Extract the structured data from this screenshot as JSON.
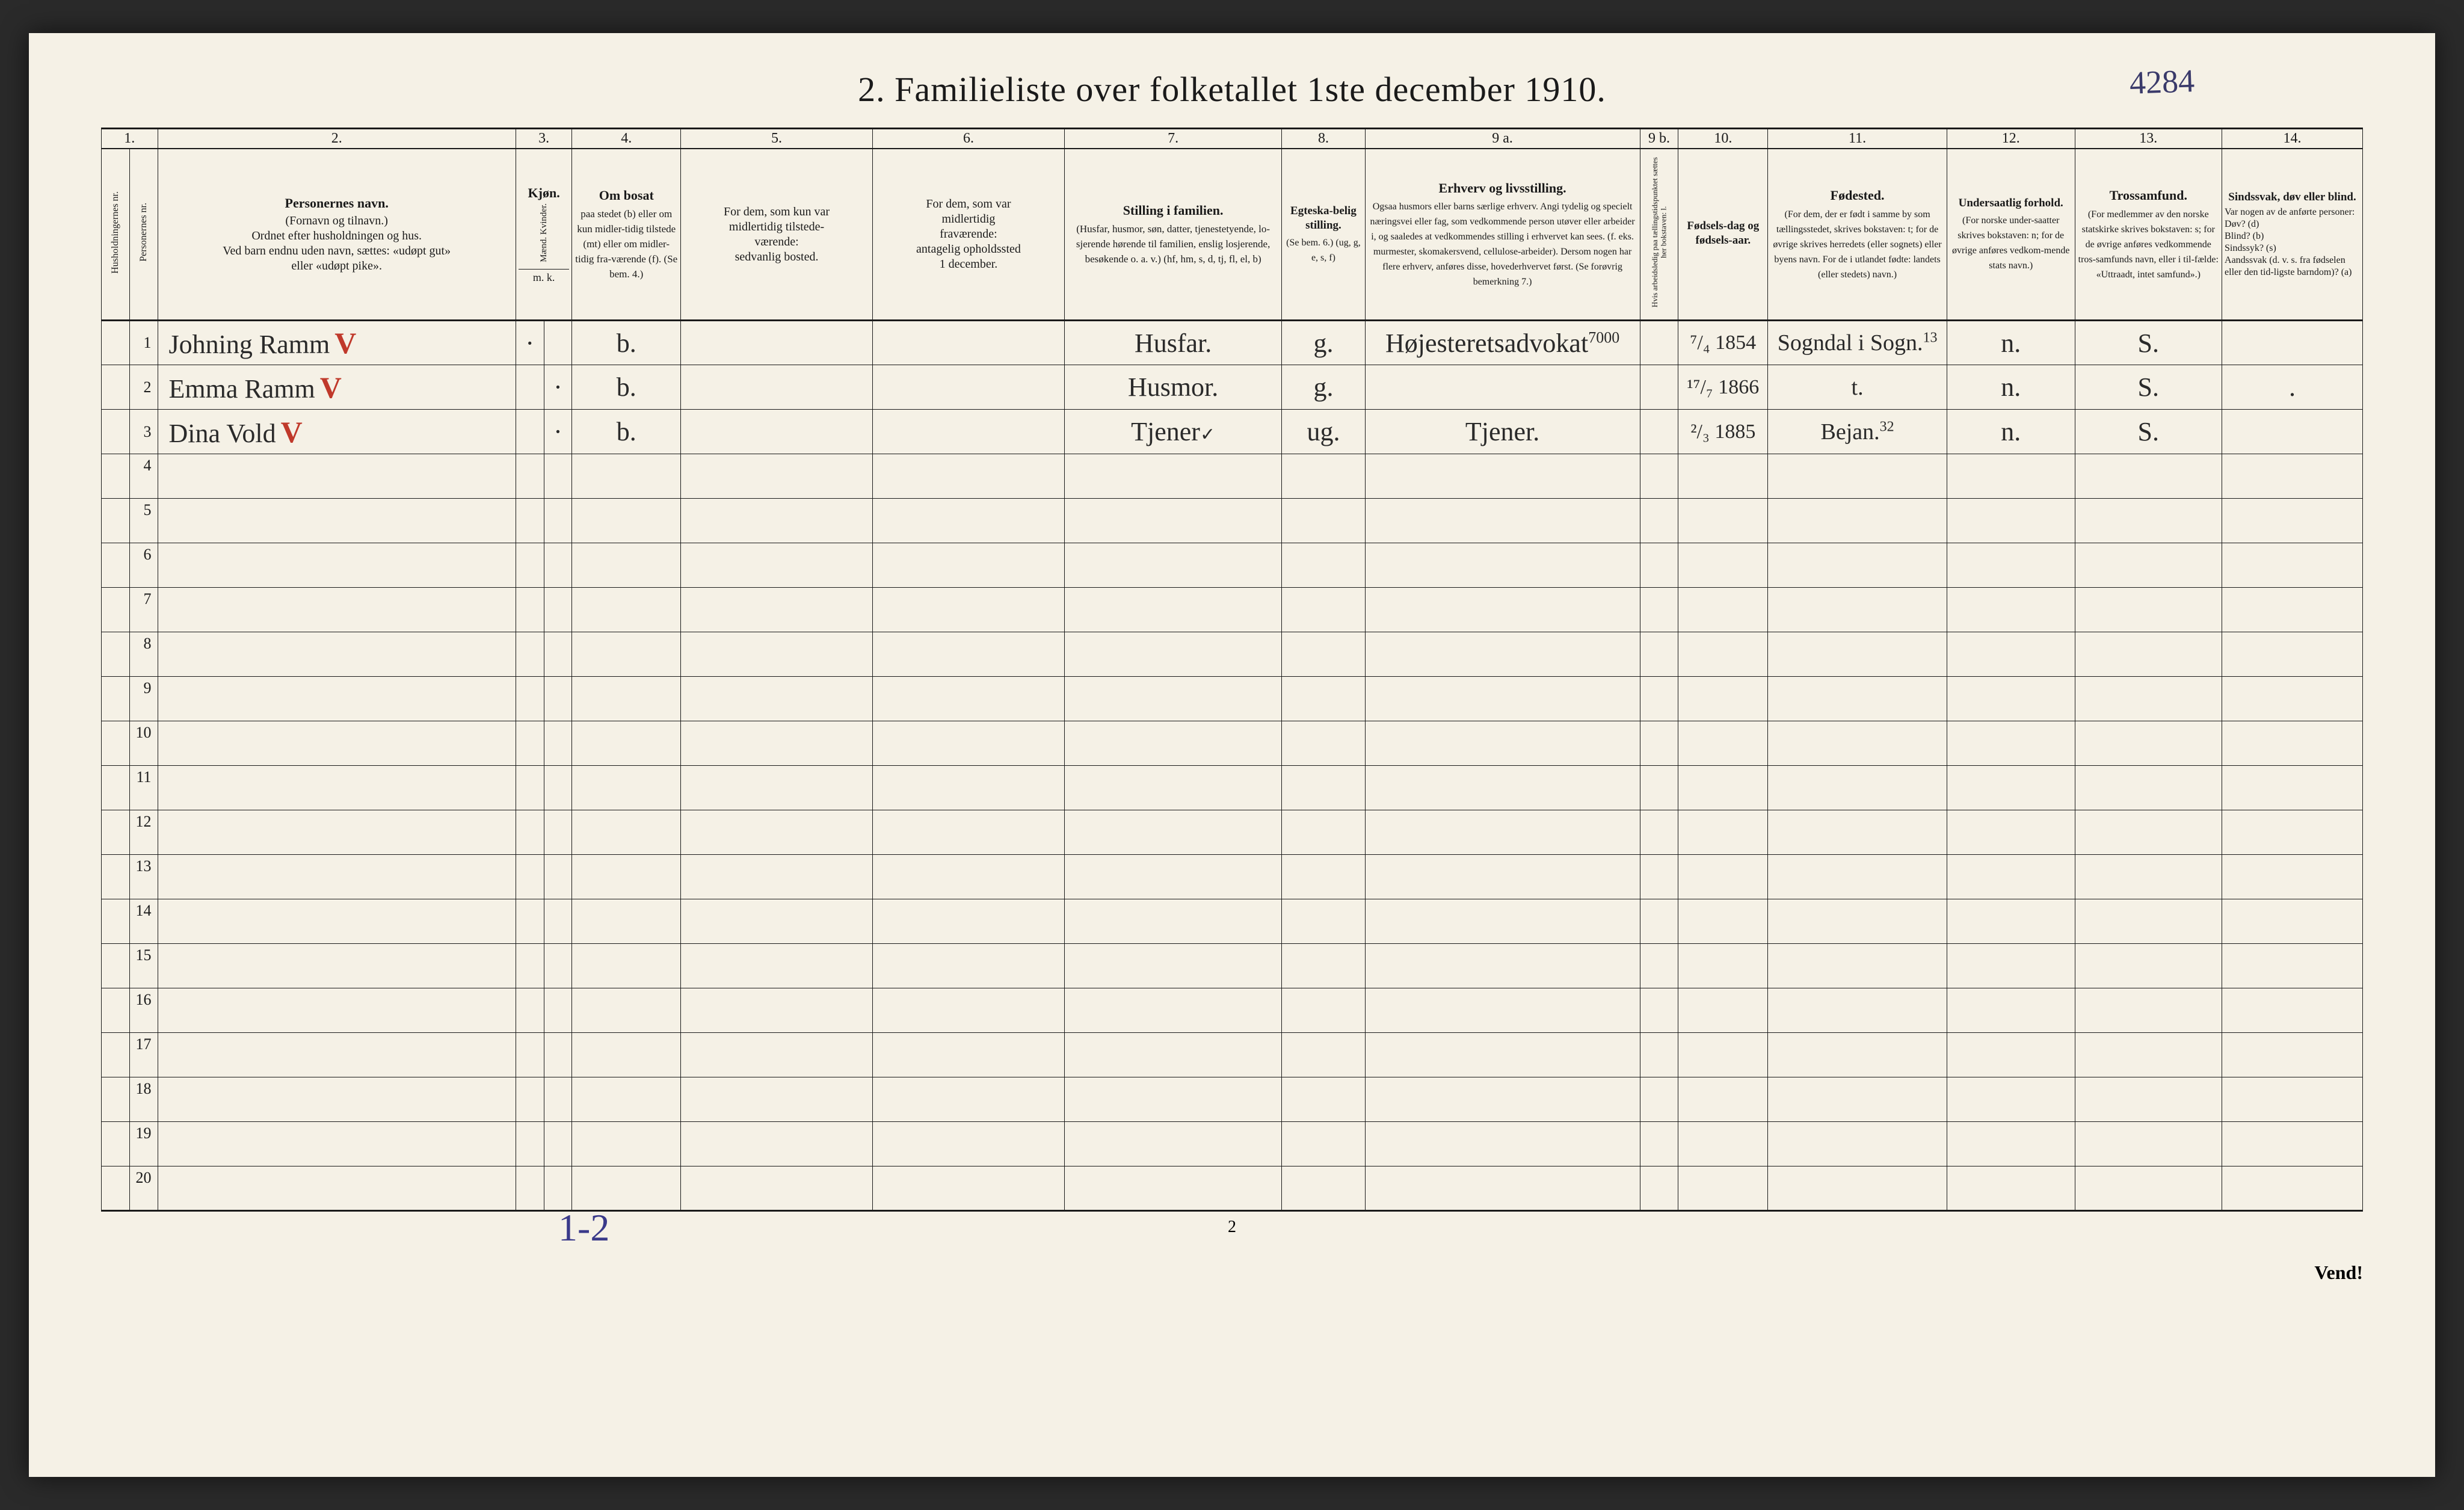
{
  "page": {
    "title": "2.  Familieliste over folketallet 1ste december 1910.",
    "top_note": "4284",
    "page_number": "2",
    "bottom_note": "1-2",
    "vend": "Vend!",
    "background_color": "#f5f1e6",
    "border_color": "#1a1a1a",
    "handwriting_color": "#2a2a2a",
    "blue_ink": "#3a3a8a",
    "red_ink": "#c0392b"
  },
  "col_numbers": [
    "1.",
    "2.",
    "3.",
    "4.",
    "5.",
    "6.",
    "7.",
    "8.",
    "9 a.",
    "9 b.",
    "10.",
    "11.",
    "12.",
    "13.",
    "14."
  ],
  "headers": {
    "c1a": "Husholdningernes nr.",
    "c1b": "Personernes nr.",
    "c2_strong": "Personernes navn.",
    "c2_rest": "(Fornavn og tilnavn.)\nOrdnet efter husholdningen og hus.\nVed barn endnu uden navn, sættes: «udøpt gut»\neller «udøpt pike».",
    "c3_strong": "Kjøn.",
    "c3_sub": "Mænd.  Kvinder.",
    "c3_mk": "m.  k.",
    "c4_strong": "Om bosat",
    "c4_rest": "paa stedet (b) eller om kun midler-tidig tilstede (mt) eller om midler-tidig fra-værende (f). (Se bem. 4.)",
    "c5": "For dem, som kun var\nmidlertidig tilstede-\nværende:\nsedvanlig bosted.",
    "c6": "For dem, som var\nmidlertidig\nfraværende:\nantagelig opholdssted\n1 december.",
    "c7_strong": "Stilling i familien.",
    "c7_rest": "(Husfar, husmor, søn, datter, tjenestetyende, lo-sjerende hørende til familien, enslig losjerende, besøkende o. a. v.)\n(hf, hm, s, d, tj, fl, el, b)",
    "c8_strong": "Egteska-belig stilling.",
    "c8_rest": "(Se bem. 6.)\n(ug, g, e, s, f)",
    "c9a_strong": "Erhverv og livsstilling.",
    "c9a_rest": "Ogsaa husmors eller barns særlige erhverv. Angi tydelig og specielt næringsvei eller fag, som vedkommende person utøver eller arbeider i, og saaledes at vedkommendes stilling i erhvervet kan sees. (f. eks. murmester, skomakersvend, cellulose-arbeider). Dersom nogen har flere erhverv, anføres disse, hovederhvervet først.\n(Se forøvrig bemerkning 7.)",
    "c9b": "Hvis arbeidsledig paa tællingstidspunktet sættes her bokstaven: l.",
    "c10_strong": "Fødsels-dag og fødsels-aar.",
    "c11_strong": "Fødested.",
    "c11_rest": "(For dem, der er født i samme by som tællingsstedet, skrives bokstaven: t; for de øvrige skrives herredets (eller sognets) eller byens navn. For de i utlandet fødte: landets (eller stedets) navn.)",
    "c12_strong": "Undersaatlig forhold.",
    "c12_rest": "(For norske under-saatter skrives bokstaven: n; for de øvrige anføres vedkom-mende stats navn.)",
    "c13_strong": "Trossamfund.",
    "c13_rest": "(For medlemmer av den norske statskirke skrives bokstaven: s; for de øvrige anføres vedkommende tros-samfunds navn, eller i til-fælde: «Uttraadt, intet samfund».)",
    "c14_strong": "Sindssvak, døv eller blind.",
    "c14_rest": "Var nogen av de anførte personer:\nDøv?      (d)\nBlind?    (b)\nSindssyk? (s)\nAandssvak (d. v. s. fra fødselen eller den tid-ligste barndom)? (a)"
  },
  "rows": [
    {
      "num": "1",
      "name": "Johning Ramm",
      "mark": "V",
      "mark_color": "red",
      "m": "·",
      "k": "",
      "bosat": "b.",
      "c5": "",
      "c6": "",
      "stilling": "Husfar.",
      "egte": "g.",
      "erhverv": "Højesteretsadvokat",
      "erhverv_note": "7000",
      "c9b": "",
      "fodsel": "⁷/₄ 1854",
      "fodested": "Sogndal i Sogn.",
      "fodested_note": "13",
      "undersaat": "n.",
      "tros": "S.",
      "c14": ""
    },
    {
      "num": "2",
      "name": "Emma Ramm",
      "mark": "V",
      "mark_color": "red",
      "m": "",
      "k": "·",
      "bosat": "b.",
      "c5": "",
      "c6": "",
      "stilling": "Husmor.",
      "egte": "g.",
      "erhverv": "",
      "erhverv_note": "",
      "c9b": "",
      "fodsel": "¹⁷/₇ 1866",
      "fodested": "t.",
      "fodested_note": "",
      "undersaat": "n.",
      "tros": "S.",
      "c14": "."
    },
    {
      "num": "3",
      "name": "Dina Vold",
      "mark": "V",
      "mark_color": "red",
      "m": "",
      "k": "·",
      "bosat": "b.",
      "c5": "",
      "c6": "",
      "stilling": "Tjener",
      "stilling_note": "✓",
      "egte": "ug.",
      "erhverv": "Tjener.",
      "erhverv_note": "",
      "c9b": "",
      "fodsel": "²/₃ 1885",
      "fodested": "Bejan.",
      "fodested_note": "32",
      "undersaat": "n.",
      "tros": "S.",
      "c14": ""
    }
  ],
  "empty_rows": [
    "4",
    "5",
    "6",
    "7",
    "8",
    "9",
    "10",
    "11",
    "12",
    "13",
    "14",
    "15",
    "16",
    "17",
    "18",
    "19",
    "20"
  ]
}
